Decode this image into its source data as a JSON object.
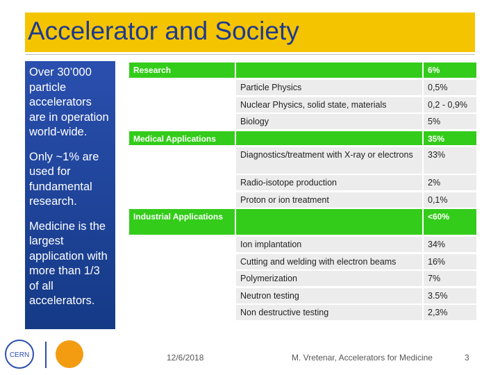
{
  "header": {
    "title": "Accelerator and Society"
  },
  "sidebar": {
    "paragraphs": [
      "Over 30’000 particle accelerators are in operation world-wide.",
      "Only ~1% are used for fundamental research.",
      "Medicine is the largest application with more than 1/3 of all accelerators."
    ]
  },
  "table": {
    "sections": [
      {
        "name": "Research",
        "value": "6%",
        "items": [
          {
            "name": "Particle Physics",
            "value": "0,5%"
          },
          {
            "name": "Nuclear Physics, solid state, materials",
            "value": "0,2 - 0,9%"
          },
          {
            "name": "Biology",
            "value": "5%"
          }
        ]
      },
      {
        "name": "Medical Applications",
        "value": "35%",
        "items": [
          {
            "name": "Diagnostics/treatment with X-ray or electrons",
            "value": "33%"
          },
          {
            "name": "Radio-isotope production",
            "value": "2%"
          },
          {
            "name": "Proton or ion treatment",
            "value": "0,1%"
          }
        ]
      },
      {
        "name": "Industrial Applications",
        "value": "<60%",
        "items": [
          {
            "name": "Ion implantation",
            "value": "34%"
          },
          {
            "name": "Cutting and welding with electron beams",
            "value": "16%"
          },
          {
            "name": "Polymerization",
            "value": "7%"
          },
          {
            "name": "Neutron testing",
            "value": "3.5%"
          },
          {
            "name": "Non destructive testing",
            "value": "2,3%"
          }
        ]
      }
    ]
  },
  "footer": {
    "date": "12/6/2018",
    "author": "M. Vretenar, Accelerators for Medicine",
    "page": "3"
  }
}
